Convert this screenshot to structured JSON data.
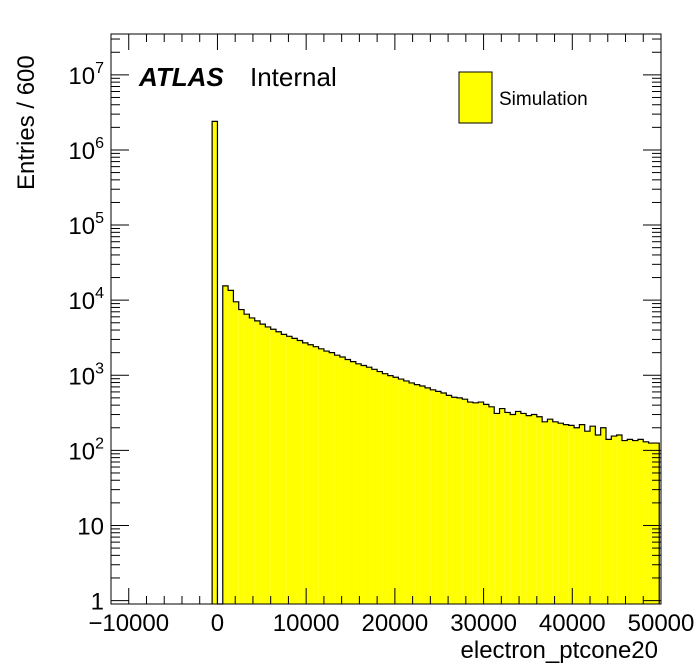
{
  "chart_data": {
    "type": "bar",
    "title": "",
    "xlabel": "electron_ptcone20",
    "ylabel": "Entries / 600",
    "xlim": [
      -12000,
      50000
    ],
    "ylim": [
      0.9,
      35000000.0
    ],
    "yscale": "log",
    "bin_width": 600,
    "fill_color": "#ffff00",
    "edge_color": "#000000",
    "x_ticks": [
      -10000,
      0,
      10000,
      20000,
      30000,
      40000,
      50000
    ],
    "x_tick_labels": [
      "−10000",
      "0",
      "10000",
      "20000",
      "30000",
      "40000",
      "50000"
    ],
    "y_ticks": [
      {
        "value": 1,
        "base": "1",
        "exp": ""
      },
      {
        "value": 10,
        "base": "10",
        "exp": ""
      },
      {
        "value": 100,
        "base": "10",
        "exp": "2"
      },
      {
        "value": 1000,
        "base": "10",
        "exp": "3"
      },
      {
        "value": 10000,
        "base": "10",
        "exp": "4"
      },
      {
        "value": 100000,
        "base": "10",
        "exp": "5"
      },
      {
        "value": 1000000,
        "base": "10",
        "exp": "6"
      },
      {
        "value": 10000000,
        "base": "10",
        "exp": "7"
      }
    ],
    "legend": {
      "label": "Simulation",
      "position": "top-right"
    },
    "annotation": {
      "bold": "ATLAS",
      "normal": "Internal"
    },
    "series": [
      {
        "x_start": [
          -600,
          0,
          600,
          1200,
          1800,
          2400,
          3000,
          3600,
          4200,
          4800,
          5400,
          6000,
          6600,
          7200,
          7800,
          8400,
          9000,
          9600,
          10200,
          10800,
          11400,
          12000,
          12600,
          13200,
          13800,
          14400,
          15000,
          15600,
          16200,
          16800,
          17400,
          18000,
          18600,
          19200,
          19800,
          20400,
          21000,
          21600,
          22200,
          22800,
          23400,
          24000,
          24600,
          25200,
          25800,
          26400,
          27000,
          27600,
          28200,
          28800,
          29400,
          30000,
          30600,
          31200,
          31800,
          32400,
          33000,
          33600,
          34200,
          34800,
          35400,
          36000,
          36600,
          37200,
          37800,
          38400,
          39000,
          39600,
          40200,
          40800,
          41400,
          42000,
          42600,
          43200,
          43800,
          44400,
          45000,
          45600,
          46200,
          46800,
          47400,
          48000,
          48600,
          49200
        ],
        "values": [
          2400000,
          0,
          15500,
          13500,
          9500,
          7500,
          6500,
          5800,
          5300,
          4800,
          4400,
          4100,
          3800,
          3500,
          3300,
          3100,
          2900,
          2700,
          2550,
          2400,
          2250,
          2100,
          2000,
          1850,
          1750,
          1620,
          1520,
          1420,
          1350,
          1280,
          1200,
          1120,
          1050,
          990,
          940,
          890,
          840,
          790,
          750,
          720,
          680,
          640,
          610,
          580,
          540,
          510,
          500,
          480,
          440,
          430,
          440,
          410,
          380,
          310,
          360,
          320,
          300,
          330,
          310,
          290,
          300,
          280,
          240,
          260,
          240,
          230,
          220,
          215,
          200,
          220,
          180,
          210,
          160,
          200,
          140,
          155,
          160,
          135,
          140,
          135,
          140,
          130,
          125,
          125
        ]
      }
    ]
  }
}
